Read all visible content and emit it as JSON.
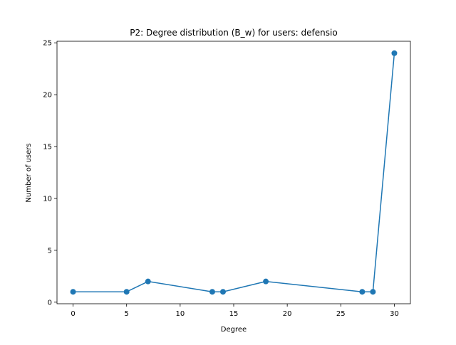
{
  "chart_data": {
    "type": "line",
    "title": "P2: Degree distribution (B_w) for users: defensio",
    "xlabel": "Degree",
    "ylabel": "Number of users",
    "xlim": [
      -1.5,
      31.5
    ],
    "ylim": [
      -0.15,
      25.15
    ],
    "xticks": [
      0,
      5,
      10,
      15,
      20,
      25,
      30
    ],
    "yticks": [
      0,
      5,
      10,
      15,
      20,
      25
    ],
    "grid": false,
    "series": [
      {
        "color": "#1f77b4",
        "marker": "circle",
        "x": [
          0,
          5,
          7,
          13,
          14,
          18,
          27,
          28,
          30
        ],
        "y": [
          1,
          1,
          2,
          1,
          1,
          2,
          1,
          1,
          24
        ]
      }
    ]
  }
}
